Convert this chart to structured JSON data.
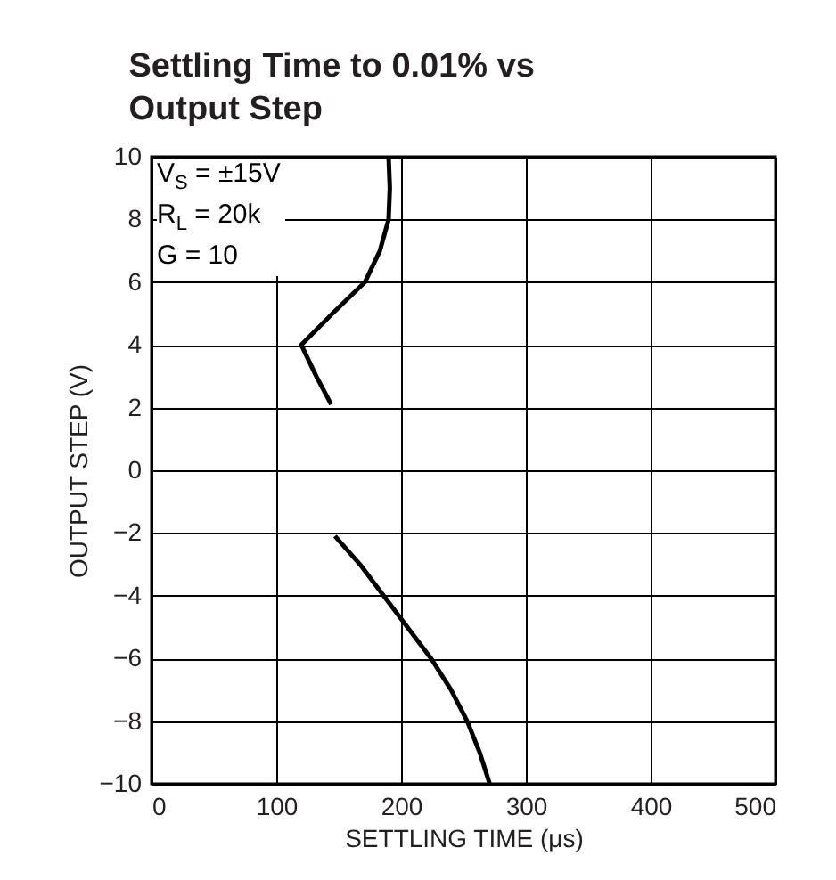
{
  "chart_data": {
    "type": "line",
    "title": "Settling Time to 0.01% vs\nOutput Step",
    "xlabel": "SETTLING TIME (μs)",
    "ylabel": "OUTPUT STEP (V)",
    "series": [
      {
        "color": "#000000",
        "x": [
          190,
          191,
          190,
          183,
          171,
          145,
          120,
          132,
          144
        ],
        "values": [
          10,
          9,
          8,
          7,
          6,
          5,
          4,
          3,
          2.1
        ]
      },
      {
        "color": "#000000",
        "x": [
          147,
          167,
          186,
          205,
          224,
          240,
          253,
          263,
          271
        ],
        "values": [
          -2.1,
          -3,
          -4,
          -5,
          -6,
          -7,
          -8,
          -9,
          -10
        ]
      }
    ],
    "xlim": [
      0,
      500
    ],
    "xticks": [
      0,
      100,
      200,
      300,
      400,
      500
    ],
    "ylim": [
      -10,
      10
    ],
    "yticks": [
      -10,
      -8,
      -6,
      -4,
      -2,
      0,
      2,
      4,
      6,
      8,
      10
    ],
    "grid": true,
    "line_style": "solid",
    "annotations": [
      "V$_{S}$ = ±15V",
      "R$_{L}$ = 20k",
      "G = 10"
    ]
  }
}
